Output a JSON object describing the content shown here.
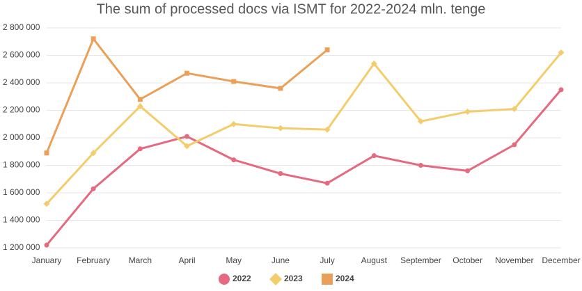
{
  "chart_data": {
    "type": "line",
    "title": "The sum of processed docs via ISMT for 2022-2024 mln. tenge",
    "categories": [
      "January",
      "February",
      "March",
      "April",
      "May",
      "June",
      "July",
      "August",
      "September",
      "October",
      "November",
      "December"
    ],
    "series": [
      {
        "name": "2022",
        "color": "#e5697f",
        "marker": "circle",
        "values": [
          1220000,
          1630000,
          1920000,
          2010000,
          1840000,
          1740000,
          1670000,
          1870000,
          1800000,
          1760000,
          1950000,
          2350000
        ]
      },
      {
        "name": "2023",
        "color": "#f3cd6b",
        "marker": "diamond",
        "values": [
          1520000,
          1890000,
          2230000,
          1940000,
          2100000,
          2070000,
          2060000,
          2540000,
          2120000,
          2190000,
          2210000,
          2620000
        ]
      },
      {
        "name": "2024",
        "color": "#eba05a",
        "marker": "square",
        "values": [
          1890000,
          2720000,
          2280000,
          2470000,
          2410000,
          2360000,
          2640000,
          null,
          null,
          null,
          null,
          null
        ]
      }
    ],
    "ylim": [
      1200000,
      2800000
    ],
    "yticks": [
      {
        "value": 1200000,
        "label": "1 200 000"
      },
      {
        "value": 1400000,
        "label": "1 400 000"
      },
      {
        "value": 1600000,
        "label": "1 600 000"
      },
      {
        "value": 1800000,
        "label": "1 800 000"
      },
      {
        "value": 2000000,
        "label": "2 000 000"
      },
      {
        "value": 2200000,
        "label": "2 200 000"
      },
      {
        "value": 2400000,
        "label": "2 400 000"
      },
      {
        "value": 2600000,
        "label": "2 600 000"
      },
      {
        "value": 2800000,
        "label": "2 800 000"
      }
    ],
    "grid": true,
    "legend": "bottom"
  }
}
